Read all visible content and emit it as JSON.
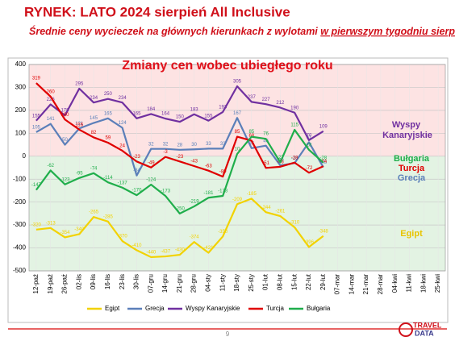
{
  "header": {
    "title": "RYNEK: LATO 2024 sierpień All Inclusive",
    "subtitle": [
      "Średnie ceny wycieczek na głównych kierunkach z wylotami ",
      "w pierwszym tygodniu sierpnia"
    ]
  },
  "chart_data": {
    "type": "line",
    "title": "Zmiany cen wobec ubiegłego roku",
    "categories": [
      "12-paź",
      "19-paź",
      "26-paź",
      "02-lis",
      "09-lis",
      "16-lis",
      "23-lis",
      "30-lis",
      "07-gru",
      "14-gru",
      "21-gru",
      "28-gru",
      "04-sty",
      "11-sty",
      "18-sty",
      "25-sty",
      "01-lut",
      "08-lut",
      "15-lut",
      "22-lut",
      "29-lut",
      "07-mar",
      "14-mar",
      "21-mar",
      "28-mar",
      "04-kwi",
      "11-kwi",
      "18-kwi",
      "25-kwi"
    ],
    "series": [
      {
        "name": "Egipt",
        "color": "#f2d200",
        "values": [
          -320,
          -313,
          -354,
          -340,
          -265,
          -285,
          -370,
          -410,
          -440,
          -437,
          -430,
          -374,
          -421,
          -350,
          -209,
          -185,
          -244,
          -261,
          -310,
          -396,
          -348,
          null,
          null,
          null,
          null,
          null,
          null,
          null,
          null
        ]
      },
      {
        "name": "Grecja",
        "color": "#5b7fb9",
        "values": [
          105,
          141,
          50,
          121,
          145,
          165,
          124,
          -84,
          32,
          32,
          28,
          30,
          33,
          33,
          167,
          35,
          46,
          -40,
          -30,
          61,
          -48,
          null,
          null,
          null,
          null,
          null,
          null,
          null,
          null
        ]
      },
      {
        "name": "Wyspy Kanaryjskie",
        "color": "#7030a0",
        "values": [
          155,
          226,
          178,
          295,
          234,
          250,
          234,
          165,
          184,
          164,
          150,
          183,
          155,
          193,
          305,
          237,
          227,
          212,
          190,
          70,
          109,
          null,
          null,
          null,
          null,
          null,
          null,
          null,
          null
        ]
      },
      {
        "name": "Turcja",
        "color": "#e00000",
        "values": [
          319,
          260,
          160,
          116,
          82,
          59,
          24,
          -23,
          -49,
          -3,
          -23,
          -43,
          -63,
          -89,
          85,
          68,
          -51,
          -46,
          -28,
          -72,
          -44,
          null,
          null,
          null,
          null,
          null,
          null,
          null,
          null
        ]
      },
      {
        "name": "Bułgaria",
        "color": "#1fae4b",
        "values": [
          -147,
          -62,
          -123,
          -95,
          -74,
          -114,
          -137,
          -170,
          -124,
          -173,
          -250,
          -219,
          -181,
          -173,
          10,
          85,
          76,
          -27,
          115,
          28,
          -28,
          null,
          null,
          null,
          null,
          null,
          null,
          null,
          null
        ]
      }
    ],
    "ylim": [
      -500,
      400
    ],
    "yticks": [
      -500,
      -400,
      -300,
      -200,
      -100,
      0,
      100,
      200,
      300,
      400
    ],
    "grid": true,
    "annotations": [
      "Wyspy Kanaryjskie",
      "Bułgaria",
      "Turcja",
      "Grecja",
      "Egipt"
    ]
  },
  "footer": {
    "page": "9",
    "logo": [
      "TRAVEL",
      "DATA"
    ]
  }
}
